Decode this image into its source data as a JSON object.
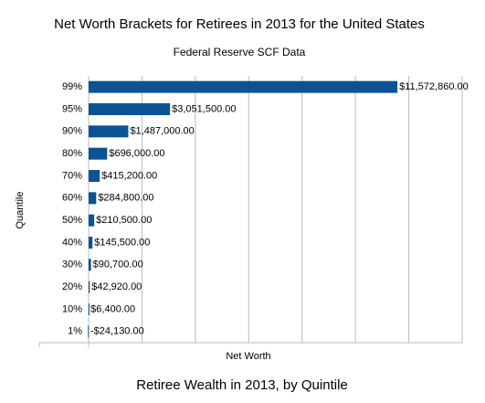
{
  "chart_data": {
    "type": "bar",
    "orientation": "horizontal",
    "title": "Net Worth Brackets for Retirees in 2013 for the United States",
    "subtitle": "Federal Reserve SCF Data",
    "x_label": "Net Worth",
    "y_label": "Quantile",
    "caption": "Retiree Wealth in 2013, by Quintile",
    "categories": [
      "99%",
      "95%",
      "90%",
      "80%",
      "70%",
      "60%",
      "50%",
      "40%",
      "30%",
      "20%",
      "10%",
      "1%"
    ],
    "values": [
      11572860,
      3051500,
      1487000,
      696000,
      415200,
      284800,
      210500,
      145500,
      90700,
      42920,
      6400,
      -24130
    ],
    "value_labels": [
      "$11,572,860.00",
      "$3,051,500.00",
      "$1,487,000.00",
      "$696,000.00",
      "$415,200.00",
      "$284,800.00",
      "$210,500.00",
      "$145,500.00",
      "$90,700.00",
      "$42,920.00",
      "$6,400.00",
      "-$24,130.00"
    ],
    "color": "#0b5394",
    "xlim": [
      0,
      14000000
    ],
    "xticks": [
      0,
      2000000,
      4000000,
      6000000,
      8000000,
      10000000,
      12000000,
      14000000
    ],
    "grid": true
  }
}
